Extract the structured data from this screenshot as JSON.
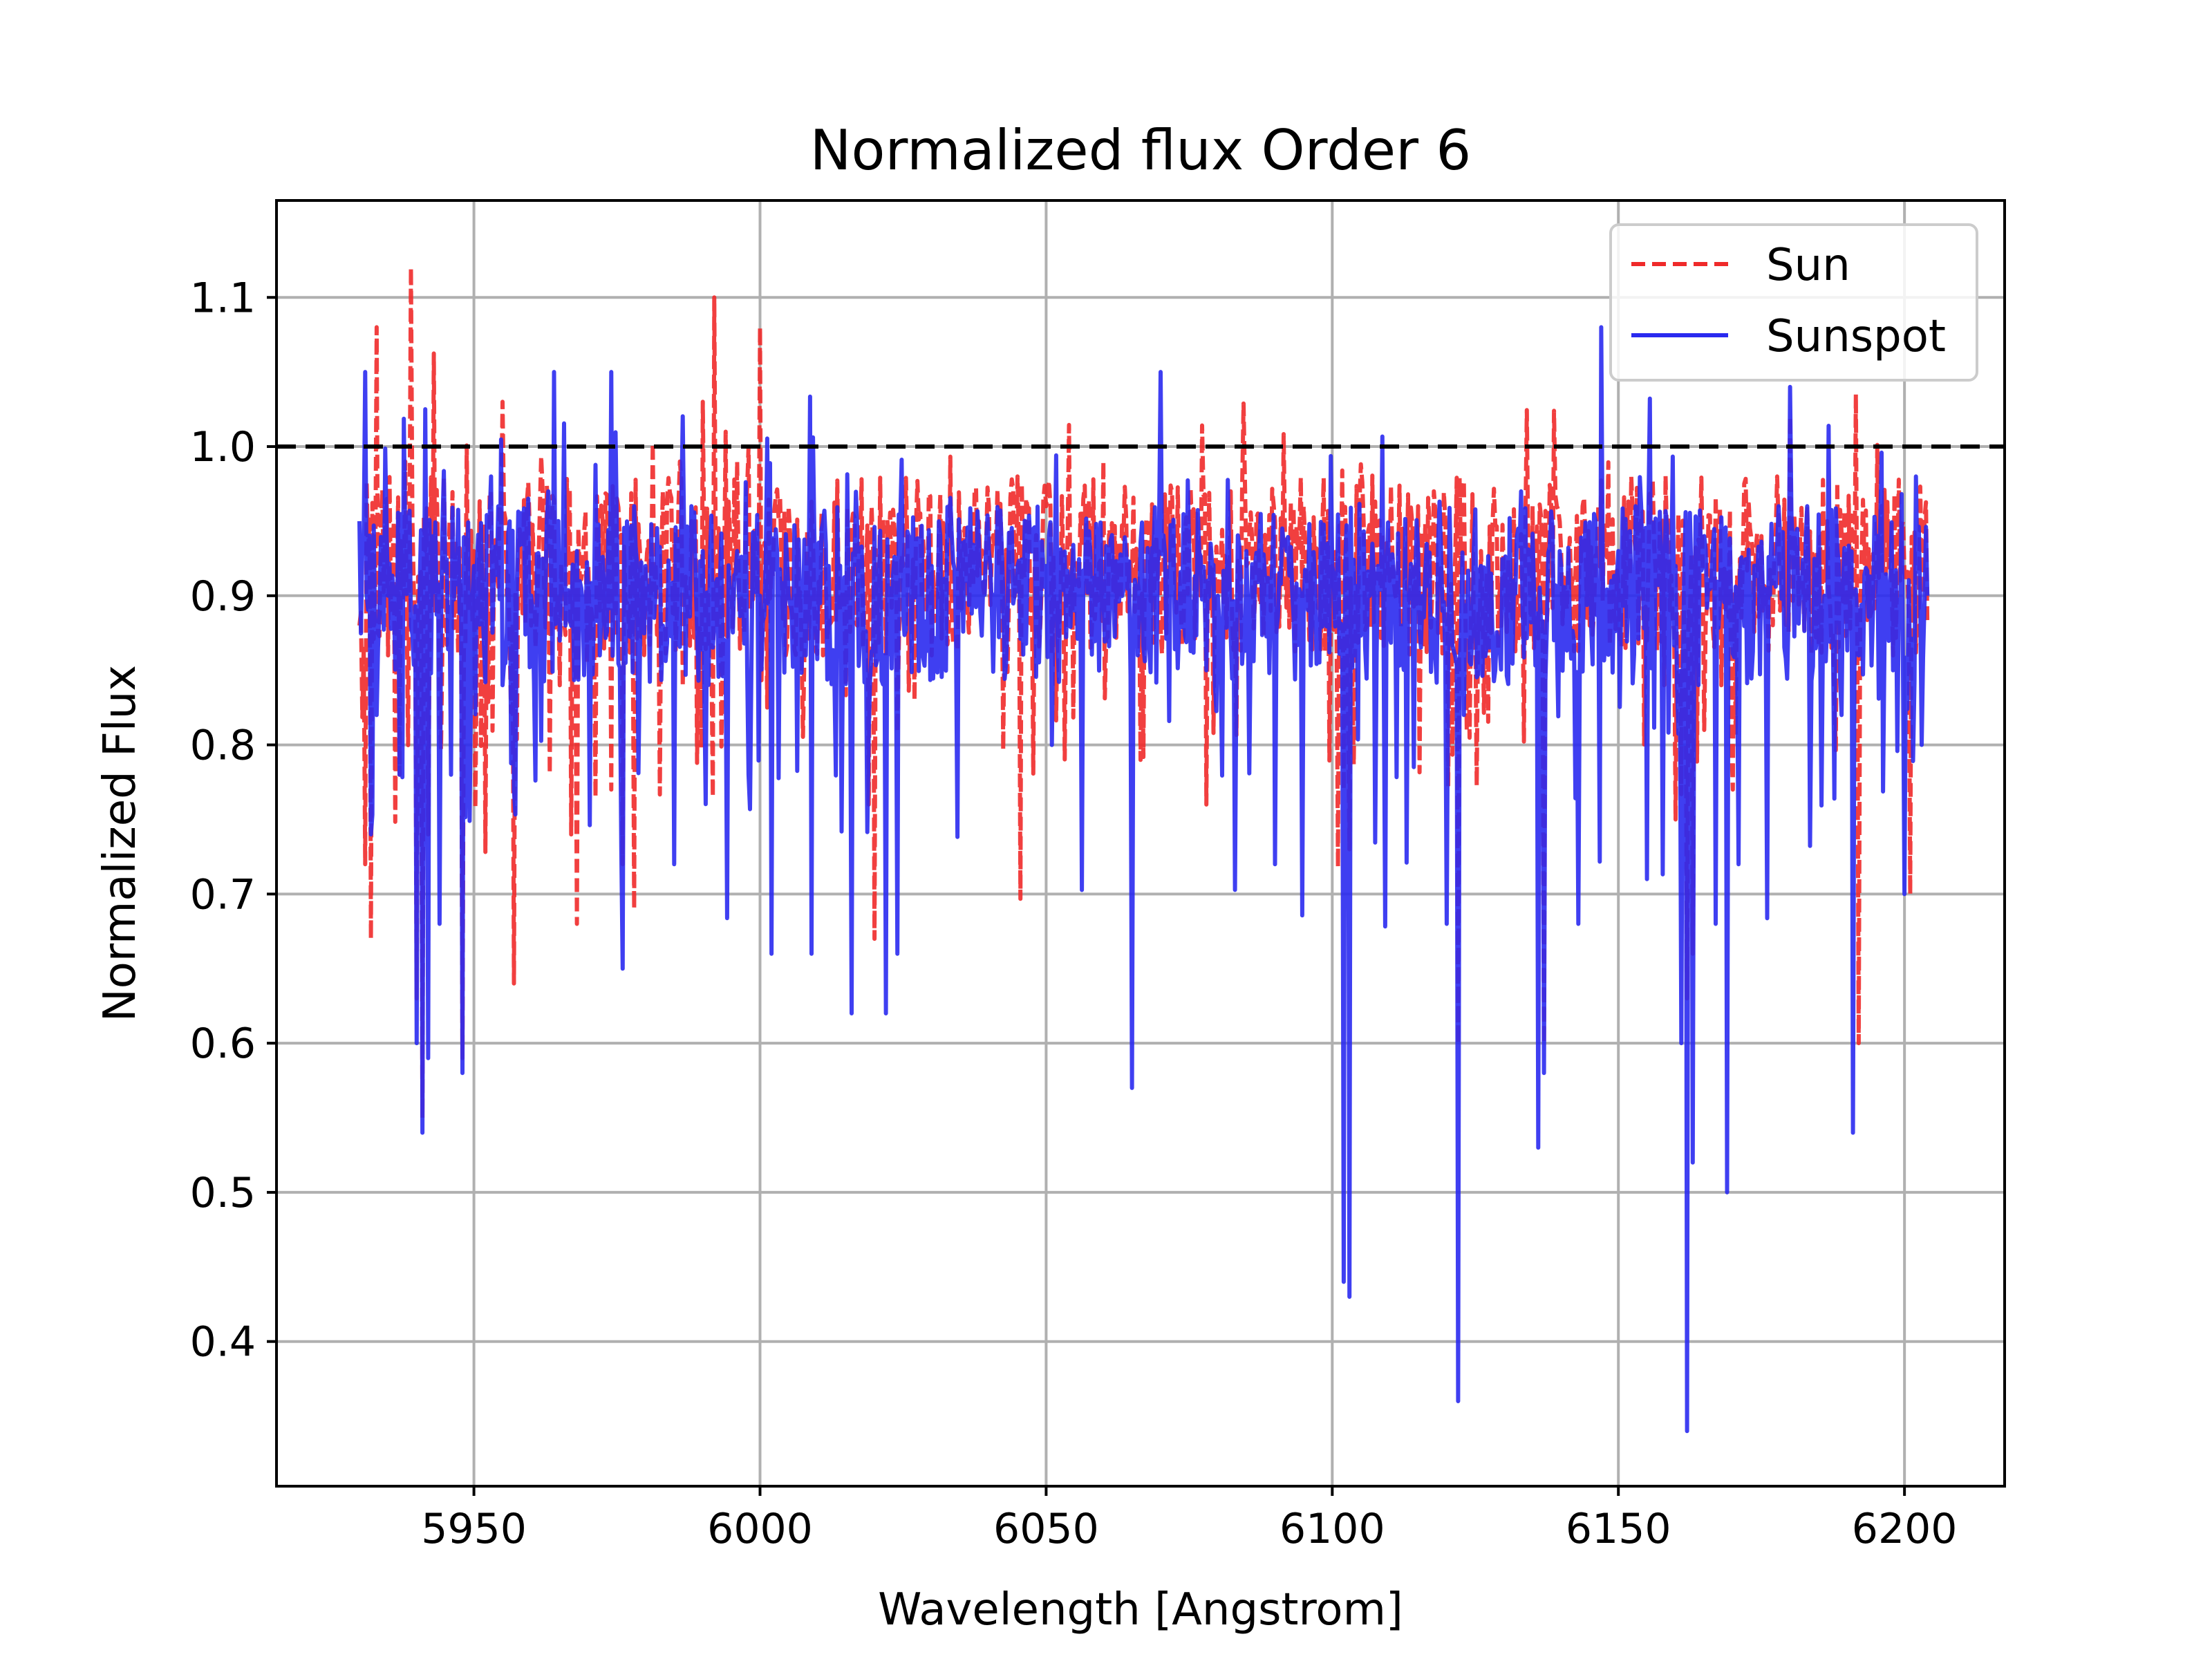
{
  "chart_data": {
    "type": "line",
    "title": "Normalized flux Order 6",
    "xlabel": "Wavelength [Angstrom]",
    "ylabel": "Normalized Flux",
    "xlim": [
      5915.5,
      6217.5
    ],
    "ylim": [
      0.303,
      1.165
    ],
    "xticks": [
      5950,
      6000,
      6050,
      6100,
      6150,
      6200
    ],
    "yticks": [
      0.4,
      0.5,
      0.6,
      0.7,
      0.8,
      0.9,
      1.0,
      1.1
    ],
    "xtick_labels": [
      "5950",
      "6000",
      "6050",
      "6100",
      "6150",
      "6200"
    ],
    "ytick_labels": [
      "0.4",
      "0.5",
      "0.6",
      "0.7",
      "0.8",
      "0.9",
      "1.0",
      "1.1"
    ],
    "grid": true,
    "legend_position": "top-right",
    "reference_line": {
      "y": 1.0,
      "style": "dashed",
      "color": "#000000"
    },
    "series": [
      {
        "name": "Sun",
        "color": "#ef2a2a",
        "style": "dashed",
        "base_level": 0.92,
        "noise": 0.06,
        "x_range": [
          5930,
          6204
        ],
        "points": [
          [
            5930,
            0.88
          ],
          [
            5931,
            0.72
          ],
          [
            5932,
            0.67
          ],
          [
            5933,
            1.08
          ],
          [
            5935,
            0.86
          ],
          [
            5936,
            0.95
          ],
          [
            5937,
            0.78
          ],
          [
            5938,
            0.99
          ],
          [
            5939,
            1.12
          ],
          [
            5940,
            0.63
          ],
          [
            5941,
            0.55
          ],
          [
            5942,
            0.74
          ],
          [
            5944,
            0.82
          ],
          [
            5946,
            0.91
          ],
          [
            5948,
            0.59
          ],
          [
            5950,
            0.93
          ],
          [
            5953,
            0.97
          ],
          [
            5955,
            1.03
          ],
          [
            5957,
            0.64
          ],
          [
            5960,
            0.88
          ],
          [
            5963,
            0.95
          ],
          [
            5965,
            0.84
          ],
          [
            5967,
            0.74
          ],
          [
            5968,
            0.68
          ],
          [
            5970,
            0.92
          ],
          [
            5972,
            0.89
          ],
          [
            5974,
            0.77
          ],
          [
            5976,
            0.72
          ],
          [
            5978,
            0.69
          ],
          [
            5980,
            0.91
          ],
          [
            5983,
            0.97
          ],
          [
            5986,
            0.99
          ],
          [
            5988,
            0.95
          ],
          [
            5990,
            1.03
          ],
          [
            5992,
            1.1
          ],
          [
            5994,
            1.01
          ],
          [
            5996,
            0.99
          ],
          [
            5998,
            1.0
          ],
          [
            6000,
            1.08
          ],
          [
            6002,
            0.92
          ],
          [
            6005,
            0.96
          ],
          [
            6008,
            0.9
          ],
          [
            6011,
            0.86
          ],
          [
            6014,
            0.89
          ],
          [
            6017,
            0.88
          ],
          [
            6019,
            0.76
          ],
          [
            6020,
            0.67
          ],
          [
            6022,
            0.86
          ],
          [
            6025,
            0.92
          ],
          [
            6027,
            0.83
          ],
          [
            6030,
            0.86
          ],
          [
            6033,
            0.88
          ],
          [
            6036,
            0.92
          ],
          [
            6040,
            0.96
          ],
          [
            6045,
            0.98
          ],
          [
            6050,
            0.96
          ],
          [
            6055,
            0.92
          ],
          [
            6060,
            0.99
          ],
          [
            6065,
            0.91
          ],
          [
            6068,
            0.94
          ],
          [
            6072,
            0.97
          ],
          [
            6075,
            0.93
          ],
          [
            6078,
            0.76
          ],
          [
            6080,
            0.9
          ],
          [
            6085,
            0.92
          ],
          [
            6090,
            0.95
          ],
          [
            6095,
            0.96
          ],
          [
            6100,
            0.92
          ],
          [
            6102,
            0.77
          ],
          [
            6103,
            0.73
          ],
          [
            6106,
            0.88
          ],
          [
            6110,
            0.91
          ],
          [
            6115,
            0.96
          ],
          [
            6120,
            0.92
          ],
          [
            6122,
            0.6
          ],
          [
            6125,
            0.88
          ],
          [
            6130,
            0.91
          ],
          [
            6135,
            0.96
          ],
          [
            6137,
            0.6
          ],
          [
            6140,
            0.93
          ],
          [
            6145,
            0.88
          ],
          [
            6150,
            0.91
          ],
          [
            6155,
            0.87
          ],
          [
            6158,
            0.84
          ],
          [
            6160,
            0.75
          ],
          [
            6162,
            0.63
          ],
          [
            6163,
            0.66
          ],
          [
            6165,
            0.81
          ],
          [
            6168,
            0.84
          ],
          [
            6170,
            0.77
          ],
          [
            6175,
            0.94
          ],
          [
            6180,
            1.02
          ],
          [
            6183,
            0.96
          ],
          [
            6186,
            0.91
          ],
          [
            6190,
            0.89
          ],
          [
            6192,
            0.6
          ],
          [
            6195,
            0.91
          ],
          [
            6198,
            0.86
          ],
          [
            6201,
            0.7
          ],
          [
            6203,
            0.92
          ],
          [
            6204,
            0.88
          ]
        ]
      },
      {
        "name": "Sunspot",
        "color": "#2a2aef",
        "style": "solid",
        "base_level": 0.9,
        "noise": 0.06,
        "x_range": [
          5930,
          6204
        ],
        "points": [
          [
            5930,
            0.95
          ],
          [
            5931,
            1.05
          ],
          [
            5932,
            0.74
          ],
          [
            5933,
            0.82
          ],
          [
            5935,
            0.9
          ],
          [
            5937,
            0.78
          ],
          [
            5939,
            0.88
          ],
          [
            5940,
            0.6
          ],
          [
            5941,
            0.54
          ],
          [
            5942,
            0.59
          ],
          [
            5944,
            0.68
          ],
          [
            5946,
            0.78
          ],
          [
            5948,
            0.58
          ],
          [
            5950,
            0.92
          ],
          [
            5953,
            0.98
          ],
          [
            5955,
            0.84
          ],
          [
            5957,
            0.77
          ],
          [
            5960,
            0.9
          ],
          [
            5963,
            0.97
          ],
          [
            5964,
            1.05
          ],
          [
            5966,
            0.88
          ],
          [
            5968,
            0.93
          ],
          [
            5970,
            0.9
          ],
          [
            5972,
            0.86
          ],
          [
            5974,
            1.05
          ],
          [
            5976,
            0.65
          ],
          [
            5978,
            0.96
          ],
          [
            5980,
            0.92
          ],
          [
            5983,
            0.88
          ],
          [
            5985,
            0.72
          ],
          [
            5988,
            0.96
          ],
          [
            5990,
            0.93
          ],
          [
            5993,
            0.91
          ],
          [
            5996,
            0.93
          ],
          [
            5998,
            0.78
          ],
          [
            6000,
            0.9
          ],
          [
            6002,
            0.66
          ],
          [
            6005,
            0.9
          ],
          [
            6008,
            0.86
          ],
          [
            6009,
            0.66
          ],
          [
            6012,
            0.92
          ],
          [
            6016,
            0.62
          ],
          [
            6019,
            0.81
          ],
          [
            6022,
            0.62
          ],
          [
            6024,
            0.66
          ],
          [
            6026,
            0.94
          ],
          [
            6030,
            0.92
          ],
          [
            6033,
            0.94
          ],
          [
            6036,
            0.91
          ],
          [
            6040,
            0.93
          ],
          [
            6045,
            0.92
          ],
          [
            6050,
            0.92
          ],
          [
            6055,
            0.89
          ],
          [
            6060,
            0.9
          ],
          [
            6065,
            0.57
          ],
          [
            6066,
            0.86
          ],
          [
            6070,
            1.05
          ],
          [
            6072,
            0.91
          ],
          [
            6075,
            0.93
          ],
          [
            6078,
            0.85
          ],
          [
            6080,
            0.9
          ],
          [
            6085,
            0.93
          ],
          [
            6090,
            0.72
          ],
          [
            6092,
            0.93
          ],
          [
            6095,
            0.89
          ],
          [
            6100,
            0.92
          ],
          [
            6102,
            0.44
          ],
          [
            6103,
            0.43
          ],
          [
            6104,
            0.86
          ],
          [
            6108,
            0.92
          ],
          [
            6112,
            0.88
          ],
          [
            6115,
            0.93
          ],
          [
            6118,
            0.86
          ],
          [
            6120,
            0.68
          ],
          [
            6122,
            0.36
          ],
          [
            6123,
            0.82
          ],
          [
            6126,
            0.92
          ],
          [
            6130,
            0.9
          ],
          [
            6133,
            0.97
          ],
          [
            6136,
            0.53
          ],
          [
            6137,
            0.58
          ],
          [
            6140,
            0.92
          ],
          [
            6143,
            0.68
          ],
          [
            6147,
            1.08
          ],
          [
            6150,
            0.93
          ],
          [
            6153,
            0.96
          ],
          [
            6155,
            0.71
          ],
          [
            6158,
            0.9
          ],
          [
            6160,
            0.92
          ],
          [
            6161,
            0.6
          ],
          [
            6162,
            0.34
          ],
          [
            6163,
            0.52
          ],
          [
            6165,
            0.94
          ],
          [
            6167,
            0.68
          ],
          [
            6169,
            0.5
          ],
          [
            6171,
            0.72
          ],
          [
            6174,
            0.92
          ],
          [
            6178,
            0.96
          ],
          [
            6180,
            1.04
          ],
          [
            6183,
            0.96
          ],
          [
            6186,
            0.9
          ],
          [
            6189,
            0.82
          ],
          [
            6191,
            0.54
          ],
          [
            6192,
            0.86
          ],
          [
            6195,
            0.93
          ],
          [
            6198,
            0.85
          ],
          [
            6200,
            0.7
          ],
          [
            6202,
            0.98
          ],
          [
            6203,
            0.8
          ],
          [
            6204,
            0.9
          ]
        ]
      }
    ]
  }
}
